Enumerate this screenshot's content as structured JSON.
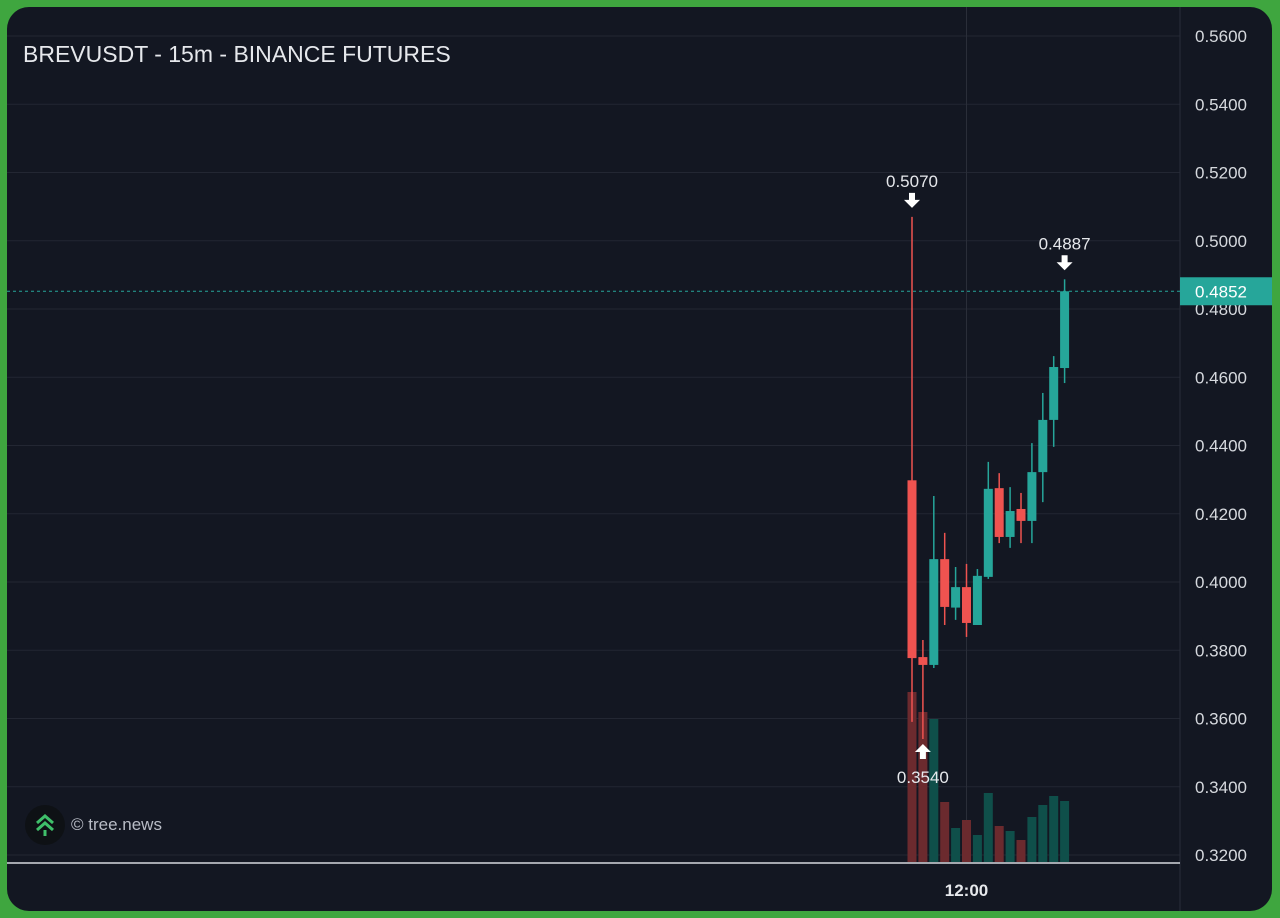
{
  "header": {
    "title": "BREVUSDT - 15m - BINANCE FUTURES"
  },
  "watermark": {
    "text": "© tree.news",
    "icon": "tree-chevrons-icon"
  },
  "colors": {
    "up": "#26a69a",
    "down": "#ef5350",
    "up_volume": "#0f4f4a",
    "down_volume": "#6b2a2e",
    "background": "#131722",
    "border": "#3fa63f",
    "last_price": "#26a69a"
  },
  "chart_data": {
    "type": "candlestick",
    "title": "BREVUSDT - 15m - BINANCE FUTURES",
    "ylim": [
      0.3178,
      0.566
    ],
    "y_ticks": [
      "0.5600",
      "0.5400",
      "0.5200",
      "0.5000",
      "0.4800",
      "0.4600",
      "0.4400",
      "0.4200",
      "0.4000",
      "0.3800",
      "0.3600",
      "0.3400",
      "0.3200"
    ],
    "x_ticks": [
      {
        "label": "12:00",
        "time": "12:00"
      }
    ],
    "grid": true,
    "last_price": {
      "value": 0.4852,
      "label": "0.4852"
    },
    "annotations": [
      {
        "label": "0.5070",
        "value": 0.507,
        "time": "10:45",
        "type": "high"
      },
      {
        "label": "0.3540",
        "value": 0.354,
        "time": "11:00",
        "type": "low"
      },
      {
        "label": "0.4887",
        "value": 0.4887,
        "time": "14:15",
        "type": "high"
      }
    ],
    "candles": [
      {
        "time": "10:45",
        "open": 0.4298,
        "high": 0.507,
        "low": 0.359,
        "close": 0.3777,
        "volume": 170
      },
      {
        "time": "11:00",
        "open": 0.378,
        "high": 0.383,
        "low": 0.354,
        "close": 0.3757,
        "volume": 150
      },
      {
        "time": "11:15",
        "open": 0.3757,
        "high": 0.4252,
        "low": 0.3748,
        "close": 0.4067,
        "volume": 143
      },
      {
        "time": "11:30",
        "open": 0.4067,
        "high": 0.4144,
        "low": 0.3874,
        "close": 0.3927,
        "volume": 60
      },
      {
        "time": "11:45",
        "open": 0.3925,
        "high": 0.4044,
        "low": 0.3889,
        "close": 0.3985,
        "volume": 34
      },
      {
        "time": "12:00",
        "open": 0.3985,
        "high": 0.4053,
        "low": 0.3839,
        "close": 0.388,
        "volume": 42
      },
      {
        "time": "12:15",
        "open": 0.3874,
        "high": 0.4038,
        "low": 0.3874,
        "close": 0.4018,
        "volume": 27
      },
      {
        "time": "12:30",
        "open": 0.4015,
        "high": 0.4352,
        "low": 0.4009,
        "close": 0.4273,
        "volume": 69
      },
      {
        "time": "12:45",
        "open": 0.4275,
        "high": 0.4319,
        "low": 0.4114,
        "close": 0.4132,
        "volume": 36
      },
      {
        "time": "13:00",
        "open": 0.4132,
        "high": 0.4278,
        "low": 0.41,
        "close": 0.4208,
        "volume": 31
      },
      {
        "time": "13:15",
        "open": 0.4214,
        "high": 0.4261,
        "low": 0.4114,
        "close": 0.4179,
        "volume": 22
      },
      {
        "time": "13:30",
        "open": 0.4179,
        "high": 0.4407,
        "low": 0.4114,
        "close": 0.4322,
        "volume": 45
      },
      {
        "time": "13:45",
        "open": 0.4322,
        "high": 0.4554,
        "low": 0.4234,
        "close": 0.4475,
        "volume": 57
      },
      {
        "time": "14:00",
        "open": 0.4475,
        "high": 0.4662,
        "low": 0.4396,
        "close": 0.463,
        "volume": 66
      },
      {
        "time": "14:15",
        "open": 0.4627,
        "high": 0.4887,
        "low": 0.4583,
        "close": 0.4852,
        "volume": 61
      }
    ]
  }
}
